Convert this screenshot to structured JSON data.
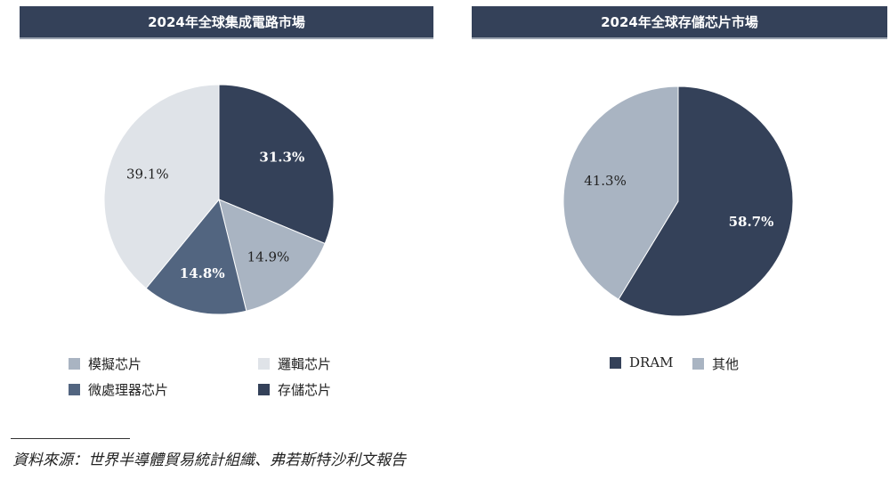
{
  "chart_data": [
    {
      "type": "pie",
      "title": "2024年全球集成電路市場",
      "slices": [
        {
          "name": "存儲芯片",
          "value": 31.3,
          "label": "31.3%",
          "color": "#344159",
          "label_color": "#ffffff"
        },
        {
          "name": "模擬芯片",
          "value": 14.9,
          "label": "14.9%",
          "color": "#a9b4c2",
          "label_color": "#222222"
        },
        {
          "name": "微處理器芯片",
          "value": 14.8,
          "label": "14.8%",
          "color": "#526580",
          "label_color": "#ffffff"
        },
        {
          "name": "邏輯芯片",
          "value": 39.1,
          "label": "39.1%",
          "color": "#dfe3e8",
          "label_color": "#222222"
        }
      ],
      "legend": [
        "模擬芯片",
        "邏輯芯片",
        "微處理器芯片",
        "存儲芯片"
      ],
      "legend_placement": "bottom"
    },
    {
      "type": "pie",
      "title": "2024年全球存儲芯片市場",
      "slices": [
        {
          "name": "DRAM",
          "value": 58.7,
          "label": "58.7%",
          "color": "#344159",
          "label_color": "#ffffff"
        },
        {
          "name": "其他",
          "value": 41.3,
          "label": "41.3%",
          "color": "#a9b4c2",
          "label_color": "#222222"
        }
      ],
      "legend": [
        "DRAM",
        "其他"
      ],
      "legend_placement": "bottom"
    }
  ],
  "source": "資料來源：世界半導體貿易統計組織、弗若斯特沙利文報告"
}
